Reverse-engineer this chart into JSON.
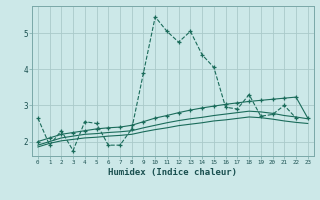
{
  "xlabel": "Humidex (Indice chaleur)",
  "background_color": "#cce8e8",
  "grid_color": "#aacaca",
  "line_color": "#1a6b5a",
  "xlim": [
    -0.5,
    23.5
  ],
  "ylim": [
    1.6,
    5.75
  ],
  "yticks": [
    2,
    3,
    4,
    5
  ],
  "xticks": [
    0,
    1,
    2,
    3,
    4,
    5,
    6,
    7,
    8,
    9,
    10,
    11,
    12,
    13,
    14,
    15,
    16,
    17,
    18,
    19,
    20,
    21,
    22,
    23
  ],
  "series": [
    {
      "x": [
        0,
        1,
        2,
        3,
        4,
        5,
        6,
        7,
        8,
        9,
        10,
        11,
        12,
        13,
        14,
        15,
        16,
        17,
        18,
        19,
        20,
        21,
        22
      ],
      "y": [
        2.65,
        1.9,
        2.3,
        1.75,
        2.55,
        2.5,
        1.9,
        1.9,
        2.35,
        3.9,
        5.45,
        5.05,
        4.75,
        5.05,
        4.4,
        4.05,
        2.95,
        2.9,
        3.3,
        2.7,
        2.75,
        3.0,
        2.65
      ],
      "linestyle": "--",
      "has_markers": true
    },
    {
      "x": [
        0,
        1,
        2,
        3,
        4,
        5,
        6,
        7,
        8,
        9,
        10,
        11,
        12,
        13,
        14,
        15,
        16,
        17,
        18,
        19,
        20,
        21,
        22,
        23
      ],
      "y": [
        2.0,
        2.1,
        2.2,
        2.25,
        2.3,
        2.35,
        2.38,
        2.4,
        2.45,
        2.55,
        2.65,
        2.72,
        2.8,
        2.87,
        2.93,
        2.98,
        3.03,
        3.07,
        3.11,
        3.14,
        3.17,
        3.2,
        3.23,
        2.65
      ],
      "linestyle": "-",
      "has_markers": true
    },
    {
      "x": [
        0,
        1,
        2,
        3,
        4,
        5,
        6,
        7,
        8,
        9,
        10,
        11,
        12,
        13,
        14,
        15,
        16,
        17,
        18,
        19,
        20,
        21,
        22,
        23
      ],
      "y": [
        1.9,
        2.0,
        2.1,
        2.15,
        2.2,
        2.22,
        2.25,
        2.27,
        2.3,
        2.38,
        2.45,
        2.52,
        2.58,
        2.63,
        2.67,
        2.72,
        2.76,
        2.8,
        2.84,
        2.82,
        2.78,
        2.72,
        2.68,
        2.63
      ],
      "linestyle": "-",
      "has_markers": false
    },
    {
      "x": [
        0,
        1,
        2,
        3,
        4,
        5,
        6,
        7,
        8,
        9,
        10,
        11,
        12,
        13,
        14,
        15,
        16,
        17,
        18,
        19,
        20,
        21,
        22,
        23
      ],
      "y": [
        1.85,
        1.95,
        2.02,
        2.06,
        2.1,
        2.12,
        2.15,
        2.17,
        2.2,
        2.27,
        2.33,
        2.38,
        2.44,
        2.48,
        2.52,
        2.57,
        2.6,
        2.64,
        2.68,
        2.66,
        2.62,
        2.57,
        2.53,
        2.5
      ],
      "linestyle": "-",
      "has_markers": false
    }
  ]
}
